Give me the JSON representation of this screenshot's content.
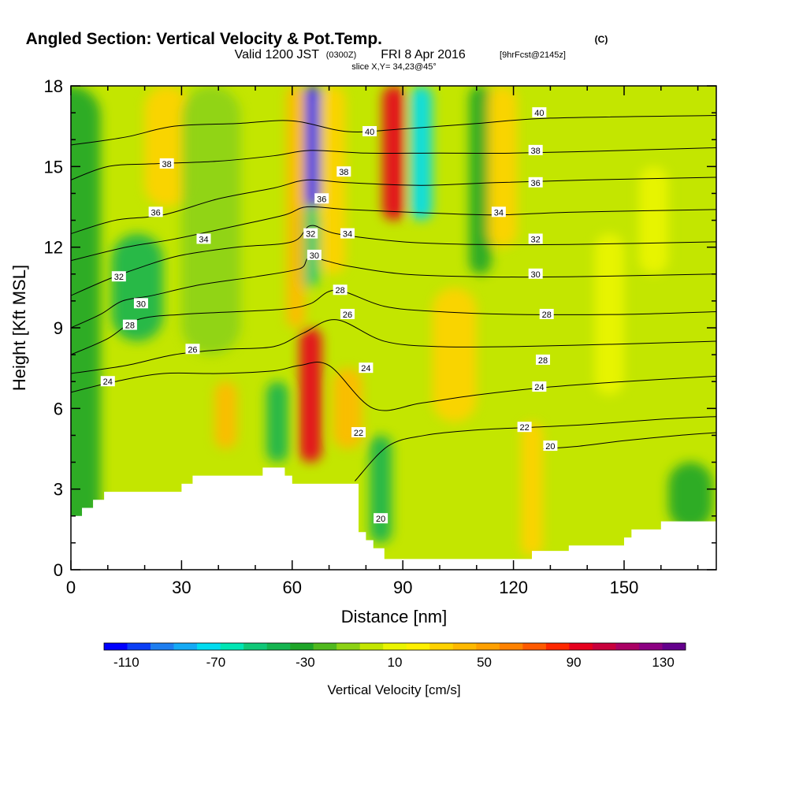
{
  "chart_data": {
    "type": "heatmap",
    "title": "Angled Section: Vertical Velocity & Pot.Temp.",
    "title_suffix": "(C)",
    "subtitle_valid": "Valid 1200 JST",
    "subtitle_utc": "(0300Z)",
    "subtitle_date": "FRI 8 Apr 2016",
    "subtitle_fcst": "[9hrFcst@2145z]",
    "slice_label": "slice X,Y= 34,23@45°",
    "xlabel": "Distance [nm]",
    "ylabel": "Height [Kft MSL]",
    "xlim": [
      0,
      175
    ],
    "ylim": [
      0,
      18
    ],
    "x_ticks": [
      "0",
      "30",
      "60",
      "90",
      "120",
      "150"
    ],
    "x_tick_values": [
      0,
      30,
      60,
      90,
      120,
      150
    ],
    "y_ticks": [
      "0",
      "3",
      "6",
      "9",
      "12",
      "15",
      "18"
    ],
    "y_tick_values": [
      0,
      3,
      6,
      9,
      12,
      15,
      18
    ],
    "colorbar": {
      "label": "Vertical Velocity [cm/s]",
      "tick_labels": [
        "-110",
        "-70",
        "-30",
        "10",
        "50",
        "90",
        "130"
      ],
      "tick_values": [
        -110,
        -70,
        -30,
        10,
        50,
        90,
        130
      ],
      "range": [
        -120,
        140
      ],
      "colors": [
        "#0000ff",
        "#0a3ef5",
        "#1e7ef0",
        "#14aaf5",
        "#00dcf0",
        "#00e6b4",
        "#10c878",
        "#14b450",
        "#1ea528",
        "#50b91e",
        "#8cd214",
        "#c3e600",
        "#ebf500",
        "#fff000",
        "#ffd200",
        "#ffb900",
        "#ffa000",
        "#ff8200",
        "#ff5a00",
        "#ff2800",
        "#e6001e",
        "#c8003c",
        "#aa0064",
        "#8c0082",
        "#64008c"
      ]
    },
    "velocity_features": [
      {
        "x_center": 0,
        "z_bottom": 0,
        "z_top": 18,
        "half_width": 8,
        "value": -28
      },
      {
        "x_center": 18,
        "z_bottom": 8.5,
        "z_top": 12.5,
        "half_width": 7,
        "value": -45
      },
      {
        "x_center": 26,
        "z_bottom": 13.5,
        "z_top": 18,
        "half_width": 6,
        "value": 35
      },
      {
        "x_center": 38,
        "z_bottom": 8,
        "z_top": 18,
        "half_width": 8,
        "value": -12
      },
      {
        "x_center": 42,
        "z_bottom": 4.5,
        "z_top": 7,
        "half_width": 3,
        "value": 42
      },
      {
        "x_center": 56,
        "z_bottom": 4,
        "z_top": 7,
        "half_width": 3,
        "value": -38
      },
      {
        "x_center": 65,
        "z_bottom": 4,
        "z_top": 9,
        "half_width": 3,
        "value": 95
      },
      {
        "x_center": 65.5,
        "z_bottom": 13.5,
        "z_top": 18,
        "half_width": 2.5,
        "value": -110
      },
      {
        "x_center": 64,
        "z_bottom": 10.5,
        "z_top": 13.5,
        "half_width": 3.5,
        "value": -50
      },
      {
        "x_center": 61,
        "z_bottom": 9,
        "z_top": 18,
        "half_width": 2.5,
        "value": 45
      },
      {
        "x_center": 71,
        "z_bottom": 11,
        "z_top": 18,
        "half_width": 3.5,
        "value": 30
      },
      {
        "x_center": 75,
        "z_bottom": 4.5,
        "z_top": 7.5,
        "half_width": 4,
        "value": 45
      },
      {
        "x_center": 84,
        "z_bottom": 1,
        "z_top": 5,
        "half_width": 3,
        "value": -45
      },
      {
        "x_center": 87.5,
        "z_bottom": 13,
        "z_top": 18,
        "half_width": 3,
        "value": 90
      },
      {
        "x_center": 95,
        "z_bottom": 13,
        "z_top": 18,
        "half_width": 3,
        "value": -72
      },
      {
        "x_center": 104,
        "z_bottom": 5.5,
        "z_top": 10.5,
        "half_width": 6,
        "value": 30
      },
      {
        "x_center": 111,
        "z_bottom": 11,
        "z_top": 18,
        "half_width": 3,
        "value": -35
      },
      {
        "x_center": 117,
        "z_bottom": 12,
        "z_top": 18,
        "half_width": 4,
        "value": 32
      },
      {
        "x_center": 125,
        "z_bottom": 0.5,
        "z_top": 5.5,
        "half_width": 3,
        "value": 28
      },
      {
        "x_center": 146,
        "z_bottom": 6.5,
        "z_top": 12.5,
        "half_width": 4,
        "value": 15
      },
      {
        "x_center": 158,
        "z_bottom": 11,
        "z_top": 15,
        "half_width": 4,
        "value": 15
      },
      {
        "x_center": 168,
        "z_bottom": 1.5,
        "z_top": 4,
        "half_width": 6,
        "value": -28
      }
    ],
    "terrain": [
      [
        0,
        2.0
      ],
      [
        3,
        2.0
      ],
      [
        3,
        2.3
      ],
      [
        6,
        2.3
      ],
      [
        6,
        2.6
      ],
      [
        9,
        2.6
      ],
      [
        9,
        2.9
      ],
      [
        30,
        2.9
      ],
      [
        30,
        3.2
      ],
      [
        33,
        3.2
      ],
      [
        33,
        3.5
      ],
      [
        52,
        3.5
      ],
      [
        52,
        3.8
      ],
      [
        58,
        3.8
      ],
      [
        58,
        3.5
      ],
      [
        60,
        3.5
      ],
      [
        60,
        3.2
      ],
      [
        78,
        3.2
      ],
      [
        78,
        1.4
      ],
      [
        80,
        1.4
      ],
      [
        80,
        1.1
      ],
      [
        82,
        1.1
      ],
      [
        82,
        0.8
      ],
      [
        85,
        0.8
      ],
      [
        85,
        0.4
      ],
      [
        125,
        0.4
      ],
      [
        125,
        0.7
      ],
      [
        135,
        0.7
      ],
      [
        135,
        0.9
      ],
      [
        150,
        0.9
      ],
      [
        150,
        1.2
      ],
      [
        152,
        1.2
      ],
      [
        152,
        1.5
      ],
      [
        160,
        1.5
      ],
      [
        160,
        1.8
      ],
      [
        175,
        1.8
      ]
    ],
    "theta_contours": [
      {
        "level": 20,
        "points": [
          [
            128,
            4.5
          ],
          [
            138,
            4.6
          ],
          [
            150,
            4.8
          ],
          [
            165,
            5.0
          ],
          [
            175,
            5.1
          ]
        ],
        "label_at": [
          130,
          4.6
        ]
      },
      {
        "level": 22,
        "points": [
          [
            77,
            3.3
          ],
          [
            86,
            4.6
          ],
          [
            96,
            5.0
          ],
          [
            110,
            5.2
          ],
          [
            125,
            5.3
          ],
          [
            140,
            5.4
          ],
          [
            160,
            5.6
          ],
          [
            175,
            5.7
          ]
        ],
        "label_at": [
          123,
          5.3
        ]
      },
      {
        "level": 24,
        "points": [
          [
            0,
            6.6
          ],
          [
            12,
            7.0
          ],
          [
            25,
            7.3
          ],
          [
            40,
            7.3
          ],
          [
            55,
            7.4
          ],
          [
            62,
            7.6
          ],
          [
            70,
            7.6
          ],
          [
            82,
            6.0
          ],
          [
            95,
            6.2
          ],
          [
            110,
            6.5
          ],
          [
            130,
            6.8
          ],
          [
            150,
            7.0
          ],
          [
            175,
            7.2
          ]
        ],
        "label_at": [
          10,
          7.0
        ]
      },
      {
        "level": 26,
        "points": [
          [
            0,
            7.3
          ],
          [
            15,
            7.6
          ],
          [
            28,
            8.0
          ],
          [
            42,
            8.2
          ],
          [
            55,
            8.3
          ],
          [
            63,
            8.8
          ],
          [
            72,
            9.3
          ],
          [
            85,
            8.5
          ],
          [
            100,
            8.3
          ],
          [
            120,
            8.3
          ],
          [
            150,
            8.4
          ],
          [
            175,
            8.5
          ]
        ],
        "label_at": [
          33,
          8.2
        ]
      },
      {
        "level": 28,
        "points": [
          [
            0,
            8.0
          ],
          [
            10,
            8.6
          ],
          [
            18,
            9.3
          ],
          [
            30,
            9.5
          ],
          [
            45,
            9.6
          ],
          [
            58,
            9.7
          ],
          [
            65,
            9.9
          ],
          [
            72,
            10.4
          ],
          [
            85,
            9.8
          ],
          [
            100,
            9.6
          ],
          [
            120,
            9.5
          ],
          [
            150,
            9.5
          ],
          [
            175,
            9.6
          ]
        ],
        "label_at": [
          129,
          9.5
        ]
      },
      {
        "level": 30,
        "points": [
          [
            0,
            9.0
          ],
          [
            8,
            9.5
          ],
          [
            14,
            10.0
          ],
          [
            22,
            10.2
          ],
          [
            35,
            10.6
          ],
          [
            50,
            10.9
          ],
          [
            62,
            11.2
          ],
          [
            65,
            11.6
          ],
          [
            75,
            11.3
          ],
          [
            90,
            11.0
          ],
          [
            110,
            10.9
          ],
          [
            135,
            10.9
          ],
          [
            175,
            11.0
          ]
        ],
        "label_at": [
          126,
          11.0
        ]
      },
      {
        "level": 32,
        "points": [
          [
            0,
            10.2
          ],
          [
            10,
            10.8
          ],
          [
            20,
            11.3
          ],
          [
            30,
            11.7
          ],
          [
            45,
            12.0
          ],
          [
            60,
            12.2
          ],
          [
            65,
            12.8
          ],
          [
            72,
            12.5
          ],
          [
            90,
            12.2
          ],
          [
            110,
            12.1
          ],
          [
            135,
            12.1
          ],
          [
            175,
            12.2
          ]
        ],
        "label_at": [
          126,
          12.3
        ]
      },
      {
        "level": 34,
        "points": [
          [
            0,
            11.5
          ],
          [
            15,
            12.0
          ],
          [
            28,
            12.3
          ],
          [
            45,
            12.8
          ],
          [
            58,
            13.2
          ],
          [
            64,
            13.5
          ],
          [
            75,
            13.4
          ],
          [
            92,
            13.3
          ],
          [
            115,
            13.2
          ],
          [
            135,
            13.3
          ],
          [
            175,
            13.4
          ]
        ],
        "label_at": [
          36,
          12.3
        ]
      },
      {
        "level": 36,
        "points": [
          [
            0,
            12.5
          ],
          [
            12,
            13.0
          ],
          [
            25,
            13.2
          ],
          [
            40,
            13.8
          ],
          [
            55,
            14.2
          ],
          [
            64,
            14.5
          ],
          [
            75,
            14.4
          ],
          [
            95,
            14.3
          ],
          [
            115,
            14.4
          ],
          [
            140,
            14.5
          ],
          [
            175,
            14.6
          ]
        ],
        "label_at": [
          126,
          14.4
        ]
      },
      {
        "level": 38,
        "points": [
          [
            0,
            14.5
          ],
          [
            10,
            15.0
          ],
          [
            22,
            15.1
          ],
          [
            40,
            15.2
          ],
          [
            55,
            15.4
          ],
          [
            65,
            15.6
          ],
          [
            80,
            15.5
          ],
          [
            100,
            15.5
          ],
          [
            120,
            15.5
          ],
          [
            150,
            15.6
          ],
          [
            175,
            15.7
          ]
        ],
        "label_at": [
          126,
          15.6
        ]
      },
      {
        "level": 40,
        "points": [
          [
            0,
            15.8
          ],
          [
            15,
            16.1
          ],
          [
            28,
            16.5
          ],
          [
            45,
            16.6
          ],
          [
            60,
            16.7
          ],
          [
            75,
            16.3
          ],
          [
            90,
            16.4
          ],
          [
            110,
            16.6
          ],
          [
            130,
            16.8
          ],
          [
            175,
            16.9
          ]
        ],
        "label_at": [
          127,
          17.0
        ]
      }
    ],
    "extra_labels": [
      {
        "text": "40",
        "at": [
          81,
          16.3
        ]
      },
      {
        "text": "38",
        "at": [
          26,
          15.1
        ]
      },
      {
        "text": "38",
        "at": [
          74,
          14.8
        ]
      },
      {
        "text": "36",
        "at": [
          23,
          13.3
        ]
      },
      {
        "text": "36",
        "at": [
          68,
          13.8
        ]
      },
      {
        "text": "34",
        "at": [
          75,
          12.5
        ]
      },
      {
        "text": "34",
        "at": [
          116,
          13.3
        ]
      },
      {
        "text": "32",
        "at": [
          65,
          12.5
        ]
      },
      {
        "text": "32",
        "at": [
          13,
          10.9
        ]
      },
      {
        "text": "30",
        "at": [
          66,
          11.7
        ]
      },
      {
        "text": "30",
        "at": [
          19,
          9.9
        ]
      },
      {
        "text": "28",
        "at": [
          73,
          10.4
        ]
      },
      {
        "text": "28",
        "at": [
          16,
          9.1
        ]
      },
      {
        "text": "28",
        "at": [
          128,
          7.8
        ]
      },
      {
        "text": "26",
        "at": [
          75,
          9.5
        ]
      },
      {
        "text": "24",
        "at": [
          80,
          7.5
        ]
      },
      {
        "text": "24",
        "at": [
          127,
          6.8
        ]
      },
      {
        "text": "22",
        "at": [
          78,
          5.1
        ]
      },
      {
        "text": "20",
        "at": [
          84,
          1.9
        ]
      }
    ]
  }
}
